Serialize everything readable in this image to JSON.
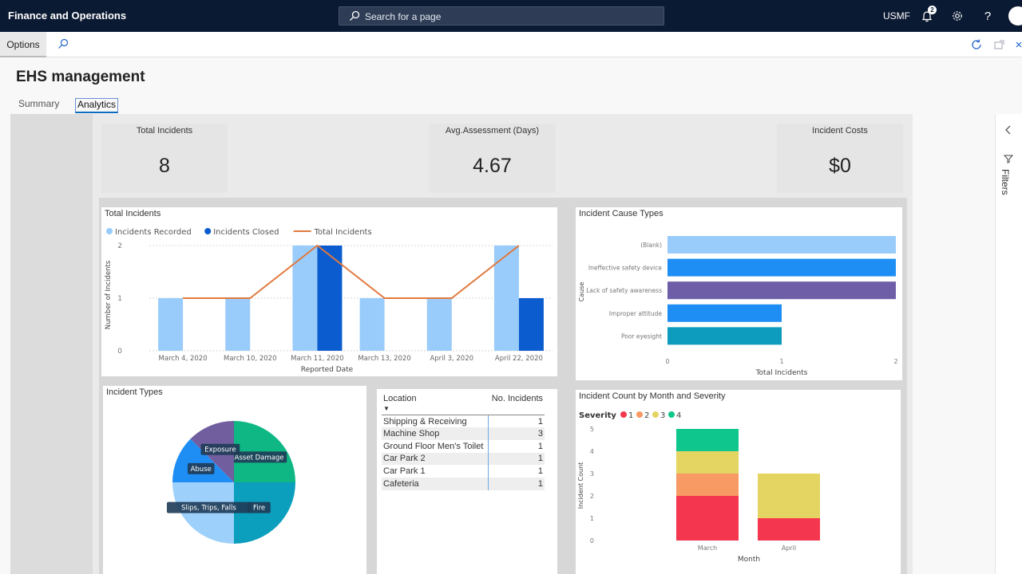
{
  "app": {
    "title": "Finance and Operations",
    "search_placeholder": "Search for a page",
    "company": "USMF",
    "notification_count": "2"
  },
  "actionbar": {
    "options_label": "Options"
  },
  "page": {
    "title": "EHS management",
    "tabs": [
      {
        "label": "Summary",
        "active": false
      },
      {
        "label": "Analytics",
        "active": true
      }
    ]
  },
  "cards": [
    {
      "title": "Total Incidents",
      "value": "8"
    },
    {
      "title": "Avg.Assessment (Days)",
      "value": "4.67"
    },
    {
      "title": "Incident Costs",
      "value": "$0"
    }
  ],
  "filters_label": "Filters",
  "charts": {
    "total_incidents": {
      "title": "Total Incidents"
    },
    "cause_types": {
      "title": "Incident Cause Types"
    },
    "incident_types": {
      "title": "Incident Types"
    },
    "month_severity": {
      "title": "Incident Count by Month and Severity"
    }
  },
  "table": {
    "headers": [
      "Location",
      "No. Incidents"
    ],
    "rows": [
      {
        "location": "Shipping & Receiving",
        "count": "1"
      },
      {
        "location": "Machine Shop",
        "count": "3"
      },
      {
        "location": "Ground Floor Men's Toilet",
        "count": "1"
      },
      {
        "location": "Car Park 2",
        "count": "1"
      },
      {
        "location": "Car Park 1",
        "count": "1"
      },
      {
        "location": "Cafeteria",
        "count": "1"
      }
    ]
  },
  "chart_data": [
    {
      "type": "bar",
      "title": "Total Incidents",
      "xlabel": "Reported Date",
      "ylabel": "Number of Incidents",
      "categories": [
        "March 4, 2020",
        "March 10, 2020",
        "March 11, 2020",
        "March 13, 2020",
        "April 3, 2020",
        "April 22, 2020"
      ],
      "ylim": [
        0,
        2
      ],
      "yticks": [
        "0",
        "1",
        "2"
      ],
      "legend_position": "top-left",
      "series": [
        {
          "name": "Incidents Recorded",
          "kind": "bar",
          "color": "#99ccfb",
          "values": [
            1,
            1,
            2,
            1,
            1,
            2
          ]
        },
        {
          "name": "Incidents Closed",
          "kind": "bar",
          "color": "#0a5ccf",
          "values": [
            0,
            0,
            2,
            0,
            0,
            1
          ]
        },
        {
          "name": "Total Incidents",
          "kind": "line",
          "color": "#e1793e",
          "values": [
            1,
            1,
            2,
            1,
            1,
            2
          ]
        }
      ]
    },
    {
      "type": "bar",
      "orientation": "horizontal",
      "title": "Incident Cause Types",
      "xlabel": "Total Incidents",
      "ylabel": "Cause",
      "categories": [
        "(Blank)",
        "Ineffective safety device",
        "Lack of safety awareness",
        "Improper attitude",
        "Poor eyesight"
      ],
      "values": [
        2,
        2,
        2,
        1,
        1
      ],
      "colors": [
        "#99ccfb",
        "#1f8ef4",
        "#6e5ea8",
        "#1f8ef4",
        "#0d9cbd"
      ],
      "xlim": [
        0,
        2
      ],
      "xticks": [
        "0",
        "1",
        "2"
      ]
    },
    {
      "type": "pie",
      "title": "Incident Types",
      "labels": [
        "Asset Damage",
        "Fire",
        "Slips, Trips, Falls",
        "Abuse",
        "Exposure"
      ],
      "values": [
        2,
        2,
        2,
        1,
        1
      ],
      "colors": [
        "#0fb784",
        "#0b9fbd",
        "#9dd1fb",
        "#1f8ef4",
        "#705e9f"
      ]
    },
    {
      "type": "bar",
      "stacked": true,
      "title": "Incident Count by Month and Severity",
      "xlabel": "Month",
      "ylabel": "Incident Count",
      "legend_title": "Severity",
      "legend_position": "top-left",
      "categories": [
        "March",
        "April"
      ],
      "ylim": [
        0,
        5
      ],
      "yticks": [
        "0",
        "1",
        "2",
        "3",
        "4",
        "5"
      ],
      "series": [
        {
          "name": "1",
          "color": "#f4374f",
          "values": [
            2,
            1
          ]
        },
        {
          "name": "2",
          "color": "#f79a63",
          "values": [
            1,
            0
          ]
        },
        {
          "name": "3",
          "color": "#e4d563",
          "values": [
            1,
            2
          ]
        },
        {
          "name": "4",
          "color": "#0fc68d",
          "values": [
            1,
            0
          ]
        }
      ]
    }
  ]
}
